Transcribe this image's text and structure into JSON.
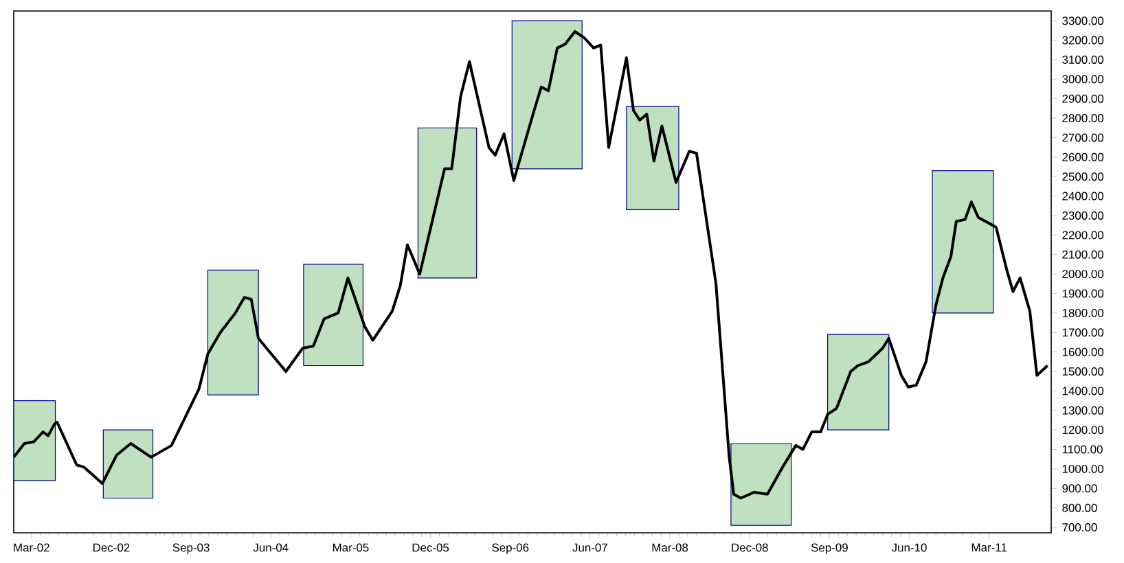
{
  "chart_data": {
    "type": "line",
    "xlim": [
      "2002-01",
      "2011-10"
    ],
    "xticks": [
      {
        "value": "2002-03",
        "label": "Mar-02"
      },
      {
        "value": "2002-12",
        "label": "Dec-02"
      },
      {
        "value": "2003-09",
        "label": "Sep-03"
      },
      {
        "value": "2004-06",
        "label": "Jun-04"
      },
      {
        "value": "2005-03",
        "label": "Mar-05"
      },
      {
        "value": "2005-12",
        "label": "Dec-05"
      },
      {
        "value": "2006-09",
        "label": "Sep-06"
      },
      {
        "value": "2007-06",
        "label": "Jun-07"
      },
      {
        "value": "2008-03",
        "label": "Mar-08"
      },
      {
        "value": "2008-12",
        "label": "Dec-08"
      },
      {
        "value": "2009-09",
        "label": "Sep-09"
      },
      {
        "value": "2010-06",
        "label": "Jun-10"
      },
      {
        "value": "2011-03",
        "label": "Mar-11"
      }
    ],
    "ylim": [
      672,
      3350
    ],
    "yticks": [
      {
        "value": 700,
        "label": "700.00"
      },
      {
        "value": 800,
        "label": "800.00"
      },
      {
        "value": 900,
        "label": "900.00"
      },
      {
        "value": 1000,
        "label": "1000.00"
      },
      {
        "value": 1100,
        "label": "1100.00"
      },
      {
        "value": 1200,
        "label": "1200.00"
      },
      {
        "value": 1300,
        "label": "1300.00"
      },
      {
        "value": 1400,
        "label": "1400.00"
      },
      {
        "value": 1500,
        "label": "1500.00"
      },
      {
        "value": 1600,
        "label": "1600.00"
      },
      {
        "value": 1700,
        "label": "1700.00"
      },
      {
        "value": 1800,
        "label": "1800.00"
      },
      {
        "value": 1900,
        "label": "1900.00"
      },
      {
        "value": 2000,
        "label": "2000.00"
      },
      {
        "value": 2100,
        "label": "2100.00"
      },
      {
        "value": 2200,
        "label": "2200.00"
      },
      {
        "value": 2300,
        "label": "2300.00"
      },
      {
        "value": 2400,
        "label": "2400.00"
      },
      {
        "value": 2500,
        "label": "2500.00"
      },
      {
        "value": 2600,
        "label": "2600.00"
      },
      {
        "value": 2700,
        "label": "2700.00"
      },
      {
        "value": 2800,
        "label": "2800.00"
      },
      {
        "value": 2900,
        "label": "2900.00"
      },
      {
        "value": 3000,
        "label": "3000.00"
      },
      {
        "value": 3100,
        "label": "3100.00"
      },
      {
        "value": 3200,
        "label": "3200.00"
      },
      {
        "value": 3300,
        "label": "3300.00"
      }
    ],
    "series": [
      {
        "type": "area",
        "color": "#4aa84a",
        "x": [
          "2002-01-01",
          "2002-05-22"
        ],
        "values": [
          null,
          null
        ],
        "lower": [
          940,
          940
        ],
        "upper": [
          1350,
          1350
        ]
      },
      {
        "type": "area",
        "color": "#4aa84a",
        "x": [
          "2002-11-04",
          "2003-04-22"
        ],
        "values": [
          null,
          null
        ],
        "lower": [
          850,
          850
        ],
        "upper": [
          1200,
          1200
        ]
      },
      {
        "type": "area",
        "color": "#4aa84a",
        "x": [
          "2003-10-28",
          "2004-04-19"
        ],
        "values": [
          null,
          null
        ],
        "lower": [
          1380,
          1380
        ],
        "upper": [
          2020,
          2020
        ]
      },
      {
        "type": "area",
        "color": "#4aa84a",
        "x": [
          "2004-09-22",
          "2005-04-13"
        ],
        "values": [
          null,
          null
        ],
        "lower": [
          1530,
          1530
        ],
        "upper": [
          2050,
          2050
        ]
      },
      {
        "type": "area",
        "color": "#4aa84a",
        "x": [
          "2005-10-19",
          "2006-05-07"
        ],
        "values": [
          null,
          null
        ],
        "lower": [
          1980,
          1980
        ],
        "upper": [
          2750,
          2750
        ]
      },
      {
        "type": "area",
        "color": "#4aa84a",
        "x": [
          "2006-09-07",
          "2007-05-04"
        ],
        "values": [
          null,
          null
        ],
        "lower": [
          2540,
          2540
        ],
        "upper": [
          3300,
          3300
        ]
      },
      {
        "type": "area",
        "color": "#4aa84a",
        "x": [
          "2007-10-04",
          "2008-04-01"
        ],
        "values": [
          null,
          null
        ],
        "lower": [
          2330,
          2330
        ],
        "upper": [
          2860,
          2860
        ]
      },
      {
        "type": "area",
        "color": "#4aa84a",
        "x": [
          "2008-09-28",
          "2009-04-22"
        ],
        "values": [
          null,
          null
        ],
        "lower": [
          710,
          710
        ],
        "upper": [
          1130,
          1130
        ]
      },
      {
        "type": "area",
        "color": "#4aa84a",
        "x": [
          "2009-08-25",
          "2010-03-22"
        ],
        "values": [
          null,
          null
        ],
        "lower": [
          1200,
          1200
        ],
        "upper": [
          1690,
          1690
        ]
      },
      {
        "type": "area",
        "color": "#4aa84a",
        "x": [
          "2010-08-19",
          "2011-03-16"
        ],
        "values": [
          null,
          null
        ],
        "lower": [
          1800,
          1800
        ],
        "upper": [
          2530,
          2530
        ]
      },
      {
        "color": "#000000",
        "x": [
          "2002-01-01",
          "2002-02-07",
          "2002-03-10",
          "2002-04-10",
          "2002-04-28",
          "2002-05-19",
          "2002-05-28",
          "2002-08-04",
          "2002-08-28",
          "2002-11-01",
          "2002-12-19",
          "2003-02-07",
          "2003-04-16",
          "2003-06-25",
          "2003-09-28",
          "2003-10-28",
          "2003-12-10",
          "2004-02-01",
          "2004-03-01",
          "2004-03-25",
          "2004-04-19",
          "2004-07-22",
          "2004-09-19",
          "2004-10-25",
          "2004-12-01",
          "2005-01-19",
          "2005-02-22",
          "2005-04-19",
          "2005-05-16",
          "2005-07-22",
          "2005-08-19",
          "2005-09-13",
          "2005-10-25",
          "2006-01-19",
          "2006-02-13",
          "2006-03-13",
          "2006-04-13",
          "2006-06-19",
          "2006-07-10",
          "2006-08-10",
          "2006-09-13",
          "2006-11-22",
          "2006-12-16",
          "2007-01-10",
          "2007-02-10",
          "2007-03-07",
          "2007-04-10",
          "2007-05-13",
          "2007-06-13",
          "2007-07-07",
          "2007-08-04",
          "2007-10-04",
          "2007-10-28",
          "2007-11-19",
          "2007-12-13",
          "2008-01-07",
          "2008-02-04",
          "2008-03-22",
          "2008-05-07",
          "2008-06-01",
          "2008-08-07",
          "2008-09-22",
          "2008-10-07",
          "2008-11-01",
          "2008-12-16",
          "2009-02-01",
          "2009-03-19",
          "2009-04-13",
          "2009-05-07",
          "2009-06-01",
          "2009-07-01",
          "2009-08-01",
          "2009-08-25",
          "2009-09-25",
          "2009-11-13",
          "2009-12-07",
          "2010-01-13",
          "2010-03-01",
          "2010-03-22",
          "2010-05-04",
          "2010-05-28",
          "2010-06-25",
          "2010-07-28",
          "2010-09-01",
          "2010-09-25",
          "2010-10-22",
          "2010-11-10",
          "2010-12-10",
          "2011-01-01",
          "2011-01-25",
          "2011-03-01",
          "2011-03-25",
          "2011-05-01",
          "2011-05-22",
          "2011-06-16",
          "2011-07-19",
          "2011-08-13",
          "2011-09-19"
        ],
        "values": [
          1060,
          1130,
          1140,
          1190,
          1170,
          1230,
          1240,
          1020,
          1010,
          925,
          1070,
          1130,
          1060,
          1120,
          1410,
          1590,
          1700,
          1800,
          1880,
          1870,
          1670,
          1500,
          1620,
          1630,
          1770,
          1800,
          1980,
          1730,
          1660,
          1810,
          1940,
          2150,
          2000,
          2540,
          2540,
          2910,
          3090,
          2650,
          2610,
          2720,
          2480,
          2840,
          2960,
          2940,
          3160,
          3180,
          3245,
          3210,
          3160,
          3175,
          2650,
          3110,
          2840,
          2790,
          2820,
          2580,
          2760,
          2470,
          2630,
          2620,
          1950,
          1060,
          870,
          850,
          880,
          870,
          1000,
          1060,
          1120,
          1100,
          1190,
          1190,
          1280,
          1310,
          1500,
          1530,
          1550,
          1620,
          1670,
          1480,
          1420,
          1430,
          1550,
          1840,
          1980,
          2090,
          2270,
          2280,
          2370,
          2290,
          2260,
          2240,
          2020,
          1910,
          1980,
          1810,
          1480,
          1530
        ]
      }
    ]
  }
}
